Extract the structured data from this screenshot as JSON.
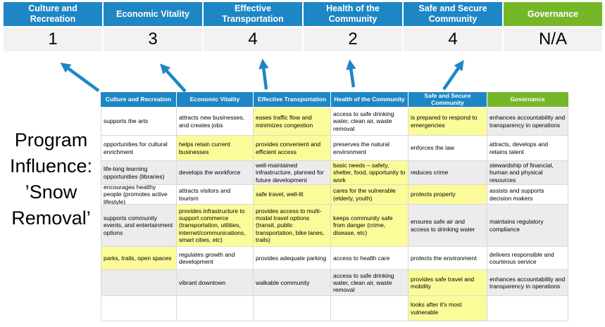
{
  "colors": {
    "header_blue": "#1e86c4",
    "header_green": "#76b72a",
    "score_bg": "#f2f2f2",
    "row_band_gray": "#ececec",
    "highlight_yellow": "#fbfb99",
    "arrow_blue": "#1e86c4"
  },
  "program_label": {
    "text": "Program Influence: ’Snow Removal’",
    "lines": [
      "Program",
      "Influence:",
      "’Snow",
      "Removal’"
    ]
  },
  "scoreboard": {
    "columns": [
      {
        "label": "Culture and Recreation",
        "score": "1",
        "style": "blue"
      },
      {
        "label": "Economic Vitality",
        "score": "3",
        "style": "blue"
      },
      {
        "label": "Effective Transportation",
        "score": "4",
        "style": "blue"
      },
      {
        "label": "Health of the Community",
        "score": "2",
        "style": "blue"
      },
      {
        "label": "Safe and Secure Community",
        "score": "4",
        "style": "blue"
      },
      {
        "label": "Governance",
        "score": "N/A",
        "style": "green"
      }
    ]
  },
  "arrows": {
    "count": 5,
    "description": "blue arrows pointing from the first five matrix columns up to their score cells"
  },
  "matrix": {
    "headers": [
      {
        "label": "Culture and Recreation",
        "style": "blue"
      },
      {
        "label": "Economic Vitality",
        "style": "blue"
      },
      {
        "label": "Effective Transportation",
        "style": "blue"
      },
      {
        "label": "Health of the Community",
        "style": "blue"
      },
      {
        "label": "Safe and Secure Community",
        "style": "blue"
      },
      {
        "label": "Governance",
        "style": "green"
      }
    ],
    "rows": [
      [
        {
          "t": "supports the arts",
          "bg": "w"
        },
        {
          "t": "attracts new businesses, and creates jobs",
          "bg": "w"
        },
        {
          "t": "eases traffic flow and minimizes congestion",
          "bg": "y"
        },
        {
          "t": "access to safe drinking water, clean air, waste removal",
          "bg": "w"
        },
        {
          "t": "is prepared to respond to emergencies",
          "bg": "y"
        },
        {
          "t": "enhances accountability and transparency in operations",
          "bg": "g"
        }
      ],
      [
        {
          "t": "opportunities for cultural enrichment",
          "bg": "w"
        },
        {
          "t": "helps retain current businesses",
          "bg": "y"
        },
        {
          "t": "provides convenient and efficient access",
          "bg": "y"
        },
        {
          "t": "preserves the natural environment",
          "bg": "w"
        },
        {
          "t": "enforces the law",
          "bg": "w"
        },
        {
          "t": "attracts, develops and retains talent",
          "bg": "w"
        }
      ],
      [
        {
          "t": "life-long learning opportunities (libraries)",
          "bg": "g"
        },
        {
          "t": "develops the workforce",
          "bg": "g"
        },
        {
          "t": "well-maintained infrastructure, planned for future development",
          "bg": "g"
        },
        {
          "t": "basic needs – safety, shelter, food, opportunity to work",
          "bg": "y"
        },
        {
          "t": "reduces crime",
          "bg": "g"
        },
        {
          "t": "stewardship of financial, human and physical resources",
          "bg": "g"
        }
      ],
      [
        {
          "t": "encourages healthy people (promotes active lifestyle)",
          "bg": "w"
        },
        {
          "t": "attracts visitors and tourism",
          "bg": "w"
        },
        {
          "t": "safe travel, well-lit",
          "bg": "y"
        },
        {
          "t": "cares for the vulnerable (elderly, youth)",
          "bg": "y"
        },
        {
          "t": "protects property",
          "bg": "y"
        },
        {
          "t": "assists and supports decision makers",
          "bg": "w"
        }
      ],
      [
        {
          "t": "supports community events, and entertainment options",
          "bg": "g"
        },
        {
          "t": "provides infrastructure to support commerce (transportation, utilities, internet/communications, smart cities, etc)",
          "bg": "y"
        },
        {
          "t": "provides access to multi-modal travel options (transit, public transportation, bike lanes, trails)",
          "bg": "y"
        },
        {
          "t": "keeps community safe from danger (crime, disease, etc)",
          "bg": "y"
        },
        {
          "t": "ensures safe air and access to drinking water",
          "bg": "g"
        },
        {
          "t": "maintains regulatory compliance",
          "bg": "g"
        }
      ],
      [
        {
          "t": "parks, trails, open spaces",
          "bg": "y"
        },
        {
          "t": "regulates growth and development",
          "bg": "w"
        },
        {
          "t": "provides adequate parking",
          "bg": "w"
        },
        {
          "t": "access to health care",
          "bg": "w"
        },
        {
          "t": "protects the environment",
          "bg": "w"
        },
        {
          "t": "delivers responsible and courteous service",
          "bg": "w"
        }
      ],
      [
        {
          "t": "",
          "bg": "g"
        },
        {
          "t": "vibrant downtown",
          "bg": "g"
        },
        {
          "t": "walkable community",
          "bg": "g"
        },
        {
          "t": "access to safe drinking water, clean air, waste removal",
          "bg": "g"
        },
        {
          "t": "provides safe travel and mobility",
          "bg": "y"
        },
        {
          "t": "enhances accountability and transparency in operations",
          "bg": "g"
        }
      ],
      [
        {
          "t": "",
          "bg": "w"
        },
        {
          "t": "",
          "bg": "w"
        },
        {
          "t": "",
          "bg": "w"
        },
        {
          "t": "",
          "bg": "w"
        },
        {
          "t": "looks after it's most vulnerable",
          "bg": "y"
        },
        {
          "t": "",
          "bg": "w"
        }
      ]
    ]
  }
}
